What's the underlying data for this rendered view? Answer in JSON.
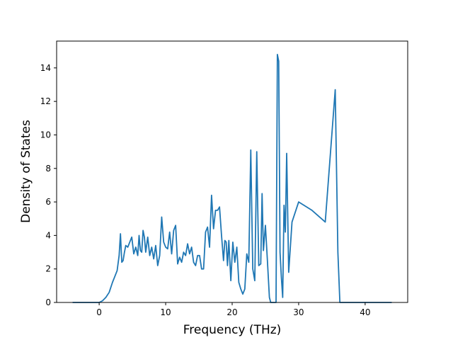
{
  "chart_data": {
    "type": "line",
    "title": "",
    "xlabel": "Frequency (THz)",
    "ylabel": "Density of States",
    "xlim": [
      -6.4,
      46.4
    ],
    "ylim": [
      0,
      15.6
    ],
    "xticks": [
      0,
      10,
      20,
      30,
      40
    ],
    "yticks": [
      0,
      2,
      4,
      6,
      8,
      10,
      12,
      14
    ],
    "grid": false,
    "legend": "none",
    "line_color": "#1f77b4",
    "series": [
      {
        "x": [
          -4.0,
          -2.0,
          0.0,
          0.5,
          1.0,
          1.5,
          2.0,
          2.3,
          2.7,
          3.0,
          3.2,
          3.4,
          3.6,
          3.8,
          4.0,
          4.3,
          4.6,
          4.9,
          5.2,
          5.5,
          5.8,
          6.0,
          6.2,
          6.4,
          6.6,
          6.8,
          7.0,
          7.3,
          7.6,
          7.9,
          8.2,
          8.5,
          8.8,
          9.1,
          9.4,
          9.7,
          10.0,
          10.3,
          10.6,
          10.9,
          11.2,
          11.5,
          11.8,
          12.1,
          12.4,
          12.7,
          13.0,
          13.3,
          13.6,
          13.9,
          14.2,
          14.5,
          14.8,
          15.1,
          15.4,
          15.7,
          16.0,
          16.3,
          16.6,
          16.9,
          17.2,
          17.5,
          17.8,
          18.1,
          18.4,
          18.7,
          18.9,
          19.1,
          19.3,
          19.5,
          19.8,
          20.1,
          20.4,
          20.7,
          21.0,
          21.3,
          21.6,
          21.9,
          22.2,
          22.5,
          22.8,
          23.1,
          23.4,
          23.7,
          24.0,
          24.3,
          24.5,
          24.7,
          25.0,
          25.3,
          25.6,
          25.8,
          26.0,
          26.2,
          26.4,
          26.6,
          26.8,
          27.0,
          27.2,
          27.4,
          27.6,
          27.8,
          28.0,
          28.2,
          28.5,
          29.0,
          30.0,
          32.0,
          34.0,
          35.5,
          35.9,
          36.2,
          36.5,
          36.8,
          37.1,
          37.4,
          37.7,
          38.0,
          38.3,
          38.6,
          38.9,
          39.2,
          39.5,
          39.8,
          40.0,
          40.2,
          40.5,
          41.0,
          44.0
        ],
        "y": [
          0,
          0,
          0,
          0.1,
          0.3,
          0.6,
          1.2,
          1.5,
          1.9,
          2.8,
          4.1,
          2.4,
          2.5,
          3.0,
          3.4,
          3.3,
          3.6,
          3.9,
          2.9,
          3.3,
          2.8,
          4.0,
          3.1,
          3.0,
          4.3,
          3.9,
          3.0,
          3.9,
          2.8,
          3.3,
          2.6,
          3.4,
          2.2,
          2.8,
          5.1,
          3.6,
          3.3,
          3.2,
          4.2,
          2.9,
          4.3,
          4.6,
          2.3,
          2.7,
          2.4,
          3.0,
          2.8,
          3.5,
          2.9,
          3.3,
          2.4,
          2.2,
          2.8,
          2.8,
          2.0,
          2.0,
          4.2,
          4.5,
          3.3,
          6.4,
          4.4,
          5.5,
          5.5,
          5.7,
          4.0,
          2.5,
          3.7,
          3.6,
          2.2,
          3.7,
          1.3,
          3.6,
          2.4,
          3.3,
          1.2,
          0.8,
          0.5,
          0.8,
          2.9,
          2.4,
          9.1,
          2.0,
          1.3,
          9.0,
          2.2,
          2.3,
          6.5,
          3.1,
          4.6,
          2.5,
          0.3,
          0,
          0,
          0,
          0,
          0,
          14.8,
          14.4,
          3.0,
          1.5,
          0.3,
          5.8,
          4.2,
          8.9,
          1.8,
          4.8,
          6.0,
          5.5,
          4.8,
          12.7,
          3.0,
          0,
          0,
          0,
          0,
          0,
          0,
          0,
          0,
          0,
          0,
          0,
          0,
          0,
          0,
          0,
          0,
          0,
          0
        ]
      }
    ]
  }
}
